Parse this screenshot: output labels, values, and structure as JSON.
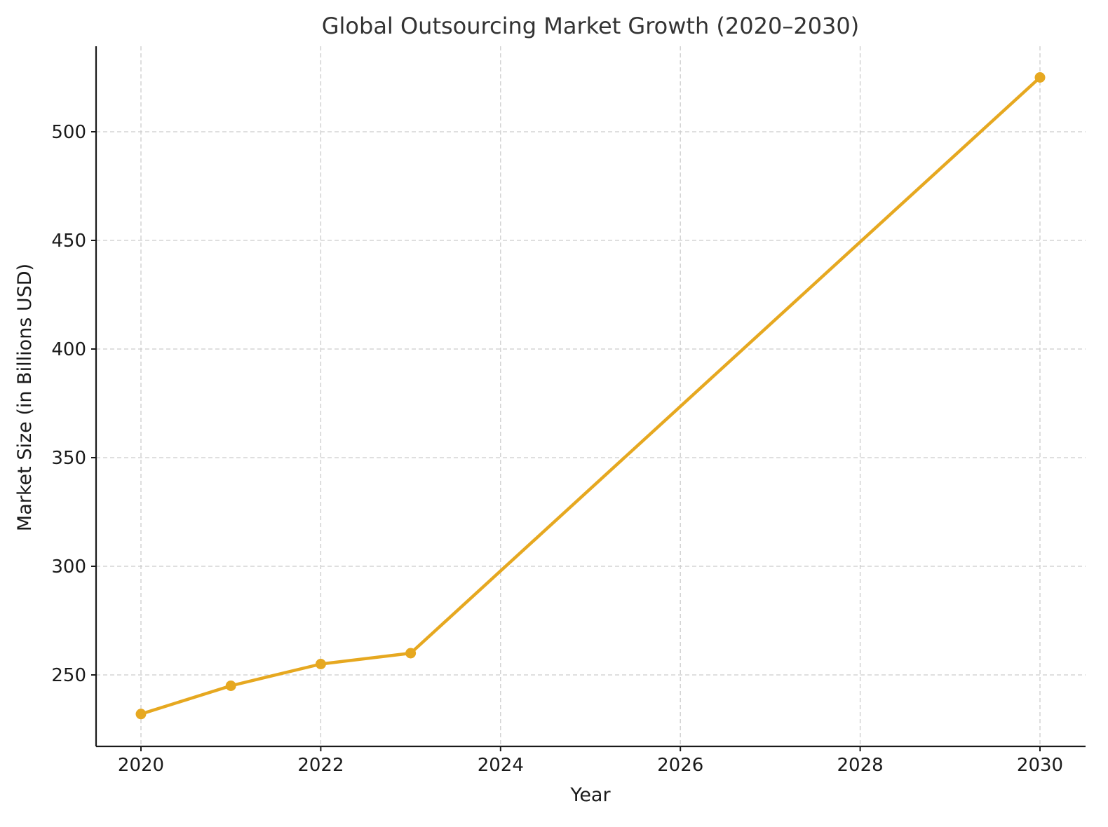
{
  "chart_data": {
    "type": "line",
    "title": "Global Outsourcing Market Growth (2020–2030)",
    "xlabel": "Year",
    "ylabel": "Market Size (in Billions USD)",
    "x": [
      2020,
      2021,
      2022,
      2023,
      2030
    ],
    "series": [
      {
        "name": "Market Size",
        "values": [
          232,
          245,
          255,
          260,
          525
        ],
        "color": "#E6A820"
      }
    ],
    "xticks": [
      "2020",
      "2022",
      "2024",
      "2026",
      "2028",
      "2030"
    ],
    "yticks": [
      "250",
      "300",
      "350",
      "400",
      "450",
      "500"
    ],
    "xlim": [
      2019.5,
      2030.5
    ],
    "ylim": [
      217,
      540
    ],
    "grid": true,
    "legend": null
  }
}
